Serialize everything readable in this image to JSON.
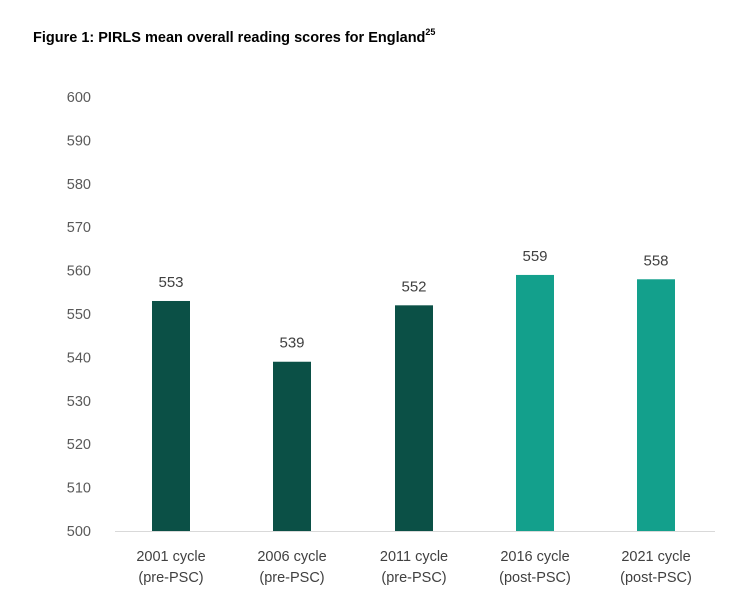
{
  "figure": {
    "title": "Figure 1: PIRLS mean overall reading scores for England",
    "footnote": "25"
  },
  "colors": {
    "pre_psc": "#0b5046",
    "post_psc": "#13a08c",
    "axis": "#d9d9d9",
    "tick_text": "#595959"
  },
  "chart_data": {
    "type": "bar",
    "title": "Figure 1: PIRLS mean overall reading scores for England",
    "xlabel": "",
    "ylabel": "",
    "ylim": [
      500,
      600
    ],
    "yticks": [
      600,
      590,
      580,
      570,
      560,
      550,
      540,
      530,
      520,
      510,
      500
    ],
    "grid": false,
    "legend": "none",
    "categories": [
      [
        "2001 cycle",
        "(pre-PSC)"
      ],
      [
        "2006 cycle",
        "(pre-PSC)"
      ],
      [
        "2011 cycle",
        "(pre-PSC)"
      ],
      [
        "2016 cycle",
        "(post-PSC)"
      ],
      [
        "2021 cycle",
        "(post-PSC)"
      ]
    ],
    "values": [
      553,
      539,
      552,
      559,
      558
    ],
    "data_labels": [
      "553",
      "539",
      "552",
      "559",
      "558"
    ],
    "bar_colors": [
      "#0b5046",
      "#0b5046",
      "#0b5046",
      "#13a08c",
      "#13a08c"
    ]
  }
}
